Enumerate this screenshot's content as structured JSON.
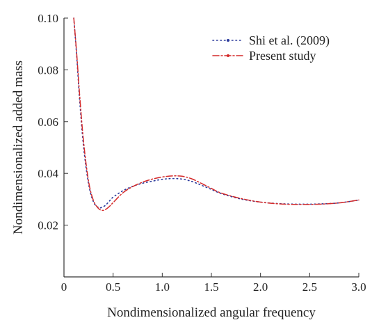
{
  "chart_data": {
    "type": "line",
    "xlabel": "Nondimensionalized angular frequency",
    "ylabel": "Nondimensionalized added mass",
    "xlim": [
      0.0,
      3.0
    ],
    "ylim": [
      0.0,
      0.1
    ],
    "xticks": [
      "0",
      "0.5",
      "1.0",
      "1.5",
      "2.0",
      "2.5",
      "3.0"
    ],
    "xtick_values": [
      0.0,
      0.5,
      1.0,
      1.5,
      2.0,
      2.5,
      3.0
    ],
    "yticks": [
      "0.02",
      "0.04",
      "0.06",
      "0.08",
      "0.10"
    ],
    "ytick_values": [
      0.02,
      0.04,
      0.06,
      0.08,
      0.1
    ],
    "grid": false,
    "legend_position": "top-right",
    "series": [
      {
        "name": "Shi et al. (2009)",
        "color": "#2b3a9c",
        "style": "dotted",
        "x": [
          0.1,
          0.13,
          0.16,
          0.2,
          0.25,
          0.3,
          0.35,
          0.38,
          0.42,
          0.46,
          0.5,
          0.6,
          0.7,
          0.8,
          0.9,
          1.0,
          1.1,
          1.2,
          1.3,
          1.4,
          1.5,
          1.6,
          1.8,
          2.0,
          2.2,
          2.4,
          2.6,
          2.8,
          3.0
        ],
        "y": [
          0.1,
          0.085,
          0.068,
          0.05,
          0.036,
          0.029,
          0.0268,
          0.0268,
          0.0276,
          0.0292,
          0.0308,
          0.0333,
          0.035,
          0.0362,
          0.037,
          0.0377,
          0.038,
          0.0378,
          0.0369,
          0.0354,
          0.0338,
          0.0322,
          0.0301,
          0.0289,
          0.0283,
          0.0281,
          0.0282,
          0.0286,
          0.0297
        ]
      },
      {
        "name": "Present study",
        "color": "#d42a2a",
        "style": "dashdot",
        "x": [
          0.1,
          0.13,
          0.16,
          0.2,
          0.25,
          0.3,
          0.35,
          0.38,
          0.41,
          0.45,
          0.5,
          0.6,
          0.7,
          0.8,
          0.9,
          1.0,
          1.1,
          1.2,
          1.3,
          1.4,
          1.5,
          1.6,
          1.8,
          2.0,
          2.2,
          2.4,
          2.6,
          2.8,
          3.0
        ],
        "y": [
          0.1,
          0.086,
          0.07,
          0.052,
          0.037,
          0.0295,
          0.0265,
          0.0258,
          0.0258,
          0.0268,
          0.0287,
          0.0325,
          0.0349,
          0.0366,
          0.0378,
          0.0386,
          0.039,
          0.0389,
          0.0379,
          0.0361,
          0.0342,
          0.0324,
          0.0303,
          0.0289,
          0.0282,
          0.028,
          0.0281,
          0.0286,
          0.0297
        ]
      }
    ]
  }
}
